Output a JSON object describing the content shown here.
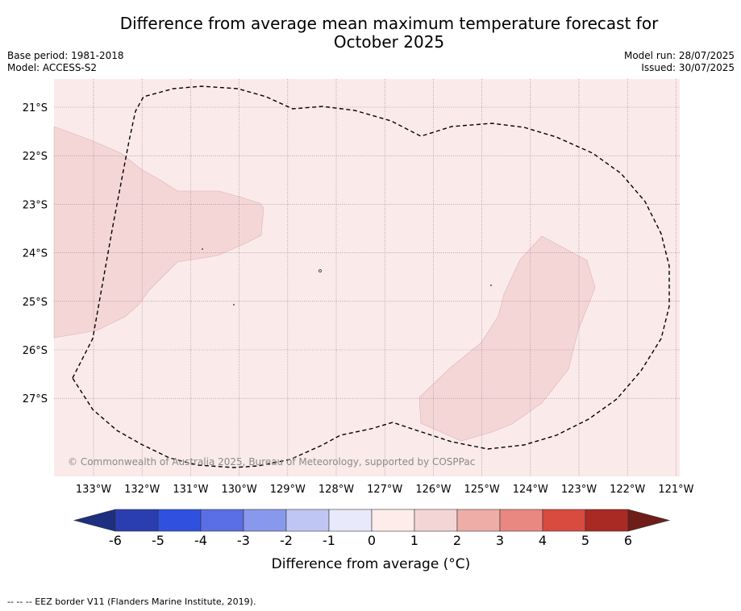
{
  "title_line1": "Difference from average mean maximum temperature forecast for",
  "title_line2": "October 2025",
  "base_period": "Base period: 1981-2018",
  "model": "Model: ACCESS-S2",
  "model_run": "Model run: 28/07/2025",
  "issued": "Issued: 30/07/2025",
  "copyright": "© Commonwealth of Australia 2025, Bureau of Meteorology, supported by COSPPac",
  "footer_note": "--  --  -- EEZ border V11 (Flanders Marine Institute, 2019).",
  "map": {
    "lon_labels": [
      "133°W",
      "132°W",
      "131°W",
      "130°W",
      "129°W",
      "128°W",
      "127°W",
      "126°W",
      "125°W",
      "124°W",
      "123°W",
      "122°W",
      "121°W"
    ],
    "lon_values": [
      -133,
      -132,
      -131,
      -130,
      -129,
      -128,
      -127,
      -126,
      -125,
      -124,
      -123,
      -122,
      -121
    ],
    "lat_labels": [
      "21°S",
      "22°S",
      "23°S",
      "24°S",
      "25°S",
      "26°S",
      "27°S"
    ],
    "lat_values": [
      -21,
      -22,
      -23,
      -24,
      -25,
      -26,
      -27
    ],
    "background_category": "0 to 1",
    "anomaly_region_category": "1 to 2",
    "colors": {
      "background": "#fbeaea",
      "region": "#f5d6d6",
      "grid": "#8a7a8a"
    }
  },
  "colorbar": {
    "label": "Difference from average (°C)",
    "ticks": [
      "-6",
      "-5",
      "-4",
      "-3",
      "-2",
      "-1",
      "0",
      "1",
      "2",
      "3",
      "4",
      "5",
      "6"
    ],
    "colors": [
      "#2a3eb1",
      "#3050e0",
      "#5a6ee5",
      "#8898ec",
      "#c0c6f4",
      "#e8eafb",
      "#fdecea",
      "#f4d5d5",
      "#eeada7",
      "#e88880",
      "#d94a3f",
      "#a82a22"
    ],
    "under_color": "#1e2f80",
    "over_color": "#6e1d18"
  }
}
